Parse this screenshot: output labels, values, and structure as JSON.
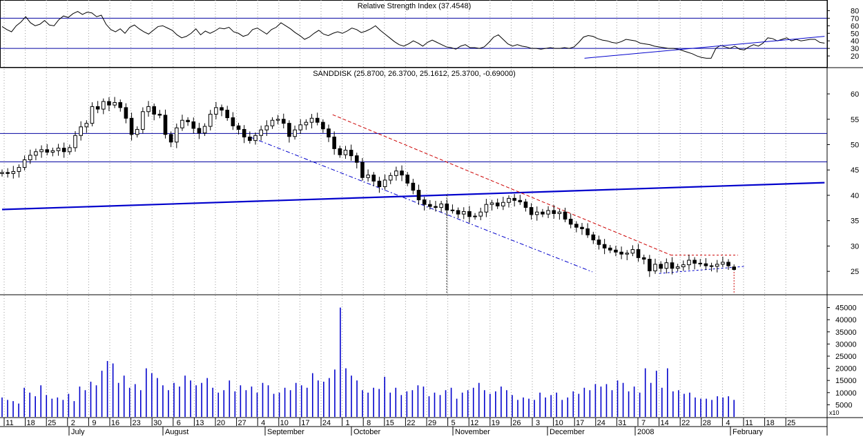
{
  "panels": {
    "rsi_title": "Relative Strength Index (37.4548)",
    "price_title": "SANDDISK (25.8700, 26.3700, 25.1612, 25.3700, -0.69000)",
    "volume_multiplier": "x10"
  },
  "colors": {
    "background": "#ffffff",
    "grid": "#9a9a9a",
    "series": "#000000",
    "level_line": "#0000a0",
    "trendline": "#0000cc",
    "channel_red": "#cc0000",
    "volume_bar": "#0000cc"
  },
  "chart_data": [
    {
      "type": "line",
      "panel": "rsi",
      "title": "Relative Strength Index (37.4548)",
      "y_ticks": [
        "20",
        "30",
        "40",
        "50",
        "60",
        "70",
        "80"
      ],
      "ylim": [
        10,
        85
      ],
      "reference_levels": [
        30,
        70
      ],
      "x_index_range": [
        0,
        209
      ],
      "values": [
        59,
        55,
        52,
        60,
        65,
        72,
        64,
        60,
        62,
        67,
        61,
        60,
        68,
        73,
        71,
        76,
        79,
        75,
        78,
        77,
        72,
        74,
        62,
        55,
        52,
        56,
        50,
        58,
        61,
        56,
        52,
        49,
        54,
        59,
        60,
        57,
        54,
        48,
        44,
        46,
        50,
        56,
        48,
        53,
        50,
        53,
        57,
        56,
        58,
        52,
        50,
        46,
        48,
        55,
        57,
        53,
        49,
        55,
        58,
        64,
        60,
        56,
        51,
        47,
        42,
        45,
        50,
        54,
        49,
        47,
        50,
        52,
        50,
        53,
        57,
        55,
        51,
        53,
        56,
        60,
        54,
        49,
        44,
        39,
        35,
        33,
        36,
        40,
        37,
        33,
        38,
        41,
        38,
        35,
        32,
        31,
        29,
        33,
        35,
        31,
        31,
        30,
        32,
        38,
        45,
        48,
        42,
        36,
        33,
        35,
        33,
        32,
        30,
        30,
        29,
        30,
        31,
        30,
        30,
        31,
        30,
        32,
        38,
        45,
        47,
        46,
        43,
        41,
        40,
        38,
        37,
        39,
        42,
        41,
        40,
        37,
        36,
        35,
        33,
        32,
        31,
        30,
        30,
        29,
        27,
        25,
        23,
        20,
        18,
        17,
        17,
        30,
        34,
        32,
        30,
        33,
        29,
        28,
        32,
        35,
        33,
        37,
        44,
        43,
        40,
        42,
        44,
        40,
        42,
        40,
        41,
        42,
        42,
        38,
        37
      ],
      "trendline": {
        "from": [
          148,
          17
        ],
        "to": [
          209,
          46
        ]
      }
    },
    {
      "type": "candlestick",
      "panel": "price",
      "title": "SANDDISK (25.8700, 26.3700, 25.1612, 25.3700, -0.69000)",
      "last": {
        "open": 25.87,
        "high": 26.37,
        "low": 25.1612,
        "close": 25.37,
        "change": -0.69
      },
      "y_ticks": [
        "25",
        "30",
        "35",
        "40",
        "45",
        "50",
        "55",
        "60"
      ],
      "ylim": [
        20.8,
        63
      ],
      "x_index_range": [
        0,
        209
      ],
      "closes": [
        44.5,
        44.3,
        44.7,
        45.5,
        47.0,
        47.9,
        48.6,
        49.0,
        48.5,
        48.8,
        49.3,
        48.6,
        49.4,
        51.8,
        53.5,
        54.2,
        57.5,
        57.0,
        58.5,
        57.8,
        58.3,
        57.3,
        55.2,
        52.0,
        53.0,
        56.5,
        57.5,
        56.0,
        55.8,
        52.0,
        50.5,
        53.3,
        54.8,
        54.5,
        53.2,
        52.3,
        53.6,
        56.0,
        57.3,
        56.8,
        55.3,
        53.7,
        53.0,
        51.5,
        50.8,
        51.8,
        52.9,
        53.7,
        54.8,
        55.0,
        54.2,
        51.6,
        52.9,
        53.9,
        54.4,
        55.2,
        54.4,
        53.1,
        51.5,
        49.2,
        48.0,
        48.9,
        47.8,
        46.5,
        43.5,
        44.0,
        42.8,
        41.7,
        43.0,
        43.9,
        44.8,
        44.0,
        42.4,
        41.0,
        39.1,
        38.2,
        37.8,
        37.6,
        38.3,
        37.1,
        37.0,
        36.3,
        36.8,
        35.8,
        35.9,
        36.7,
        38.2,
        38.5,
        37.9,
        38.6,
        39.4,
        39.0,
        38.7,
        37.6,
        36.2,
        36.7,
        36.3,
        37.0,
        36.4,
        36.7,
        35.3,
        34.3,
        33.7,
        33.4,
        32.2,
        31.2,
        30.3,
        29.6,
        29.2,
        28.8,
        28.4,
        28.6,
        29.3,
        27.7,
        27.4,
        25.1,
        26.4,
        25.6,
        26.7,
        25.6,
        25.9,
        26.3,
        27.2,
        26.6,
        26.5,
        26.1,
        26.0,
        26.4,
        26.8,
        26.1,
        25.37
      ],
      "trendline": {
        "from": [
          0,
          37.2
        ],
        "to": [
          209,
          42.5
        ]
      },
      "horizontal_levels": [
        52.2,
        46.6
      ],
      "channel_upper": {
        "from": [
          84,
          55.9
        ],
        "to": [
          170,
          28.2
        ]
      },
      "channel_lower": {
        "from": [
          63,
          51.5
        ],
        "to": [
          150,
          24.9
        ]
      },
      "box_top": {
        "from": [
          170,
          28.2
        ],
        "to": [
          187,
          28.2
        ]
      },
      "box_bottom": {
        "from": [
          167,
          24.6
        ],
        "to": [
          189,
          26.0
        ]
      },
      "marker_lines": [
        {
          "x": 113,
          "from": 40.1,
          "to": 20.8
        },
        {
          "x": 186,
          "from": 24.9,
          "to": 20.8
        }
      ]
    },
    {
      "type": "bar",
      "panel": "volume",
      "y_ticks": [
        "5000",
        "10000",
        "15000",
        "20000",
        "25000",
        "30000",
        "35000",
        "40000",
        "45000"
      ],
      "ylim": [
        0,
        48000
      ],
      "x_index_range": [
        0,
        209
      ],
      "values": [
        8000,
        7000,
        6500,
        5500,
        12000,
        10000,
        8500,
        13000,
        9000,
        7500,
        8000,
        7000,
        9500,
        6500,
        12500,
        11000,
        14500,
        13000,
        19000,
        23000,
        22000,
        14000,
        17000,
        12000,
        13500,
        11000,
        20000,
        18000,
        16000,
        13000,
        11000,
        14000,
        12500,
        17000,
        15000,
        13000,
        14000,
        16000,
        12000,
        10000,
        11000,
        15000,
        10500,
        13000,
        11000,
        12500,
        10000,
        14000,
        13000,
        9500,
        10000,
        12000,
        11000,
        14000,
        13000,
        12000,
        18000,
        15000,
        14500,
        16000,
        19500,
        45000,
        20000,
        17000,
        15000,
        11000,
        10000,
        12000,
        11500,
        16500,
        10000,
        12000,
        9000,
        10500,
        11000,
        13000,
        12500,
        8500,
        10000,
        9000,
        11000,
        12000,
        7500,
        10000,
        11000,
        12000,
        14000,
        11000,
        9500,
        10500,
        12500,
        11000,
        9000,
        7000,
        8000,
        7500,
        7000,
        10000,
        8000,
        9000,
        10000,
        7000,
        8000,
        10500,
        9500,
        12000,
        11000,
        13500,
        12500,
        13500,
        11000,
        15000,
        14000,
        10500,
        12500,
        10000,
        20000,
        14000,
        19000,
        12000,
        20000,
        10500,
        11000,
        9500,
        10000,
        8000,
        7500,
        7500,
        7000,
        8500,
        8000,
        8500,
        7000
      ],
      "last_value_bar_color": "#0000cc"
    }
  ],
  "x_axis": {
    "day_ticks": [
      "11",
      "18",
      "25",
      "2",
      "9",
      "16",
      "23",
      "30",
      "6",
      "13",
      "20",
      "27",
      "4",
      "10",
      "17",
      "24",
      "1",
      "8",
      "15",
      "22",
      "29",
      "5",
      "12",
      "19",
      "26",
      "3",
      "10",
      "17",
      "24",
      "31",
      "7",
      "14",
      "22",
      "28",
      "4",
      "11",
      "18",
      "25"
    ],
    "month_labels": [
      "July",
      "August",
      "September",
      "October",
      "November",
      "December",
      "2008",
      "February"
    ]
  }
}
